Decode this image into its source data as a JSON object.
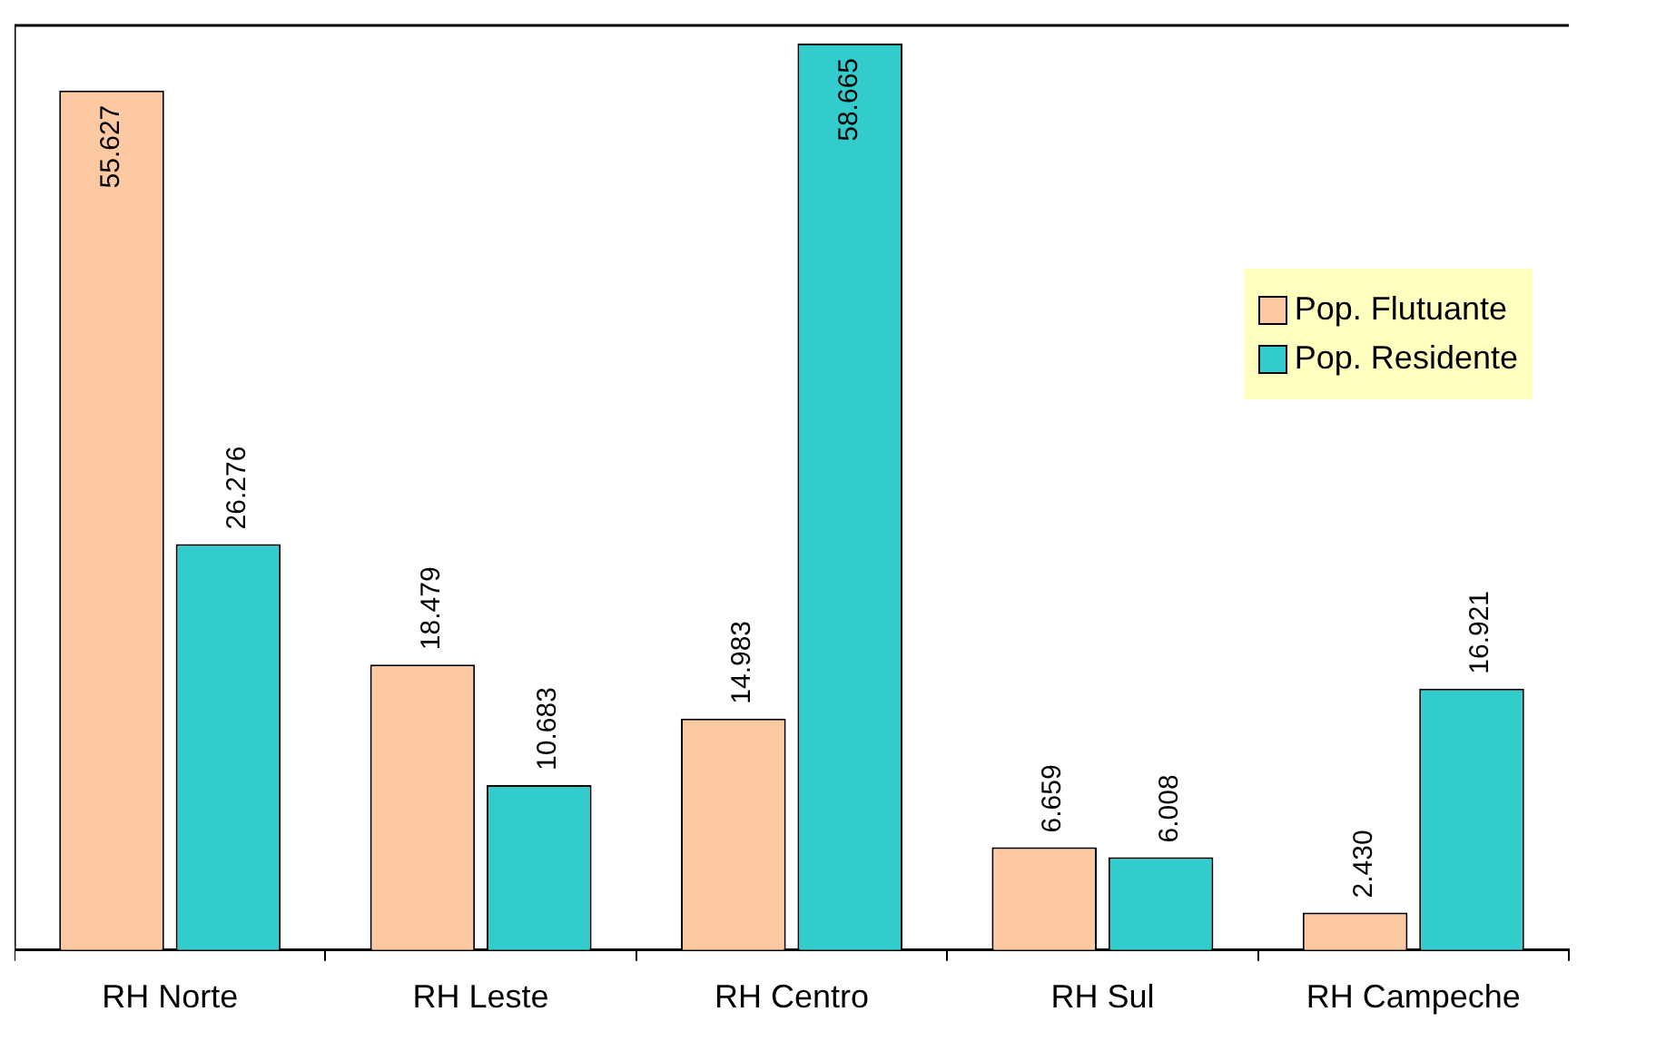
{
  "chart_data": {
    "type": "bar",
    "categories": [
      "RH Norte",
      "RH Leste",
      "RH Centro",
      "RH Sul",
      "RH Campeche"
    ],
    "series": [
      {
        "name": "Pop. Flutuante",
        "color": "#fcc9a2",
        "values": [
          55627,
          18479,
          14983,
          6659,
          2430
        ],
        "value_labels": [
          "55.627",
          "18.479",
          "14.983",
          "6.659",
          "2.430"
        ]
      },
      {
        "name": "Pop. Residente",
        "color": "#33cccc",
        "values": [
          26276,
          10683,
          58665,
          6008,
          16921
        ],
        "value_labels": [
          "26.276",
          "10.683",
          "58.665",
          "6.008",
          "16.921"
        ]
      }
    ],
    "legend": "top right",
    "grid": false
  }
}
